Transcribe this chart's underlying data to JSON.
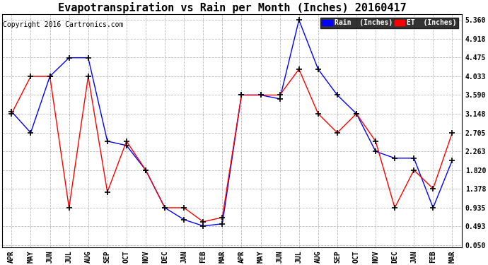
{
  "title": "Evapotranspiration vs Rain per Month (Inches) 20160417",
  "copyright": "Copyright 2016 Cartronics.com",
  "x_labels": [
    "APR",
    "MAY",
    "JUN",
    "JUL",
    "AUG",
    "SEP",
    "OCT",
    "NOV",
    "DEC",
    "JAN",
    "FEB",
    "MAR",
    "APR",
    "MAY",
    "JUN",
    "JUL",
    "AUG",
    "SEP",
    "OCT",
    "NOV",
    "DEC",
    "JAN",
    "FEB",
    "MAR"
  ],
  "rain_values": [
    3.2,
    2.7,
    4.03,
    4.47,
    4.47,
    2.5,
    2.4,
    1.82,
    0.93,
    0.65,
    0.5,
    0.55,
    3.59,
    3.59,
    3.5,
    5.36,
    4.2,
    3.59,
    3.15,
    2.26,
    2.1,
    2.1,
    0.93,
    2.05
  ],
  "et_values": [
    3.15,
    4.03,
    4.03,
    0.93,
    4.03,
    1.3,
    2.5,
    1.82,
    0.93,
    0.93,
    0.6,
    0.7,
    3.59,
    3.59,
    3.59,
    4.2,
    3.15,
    2.7,
    3.15,
    2.5,
    0.93,
    1.82,
    1.38,
    2.7
  ],
  "rain_color": "#0000ff",
  "et_color": "#ff0000",
  "bg_color": "#ffffff",
  "grid_color": "#bbbbbb",
  "yticks": [
    0.05,
    0.493,
    0.935,
    1.378,
    1.82,
    2.263,
    2.705,
    3.148,
    3.59,
    4.033,
    4.475,
    4.918,
    5.36
  ],
  "legend_rain_label": "Rain  (Inches)",
  "title_fontsize": 11,
  "tick_fontsize": 7,
  "copyright_fontsize": 7
}
